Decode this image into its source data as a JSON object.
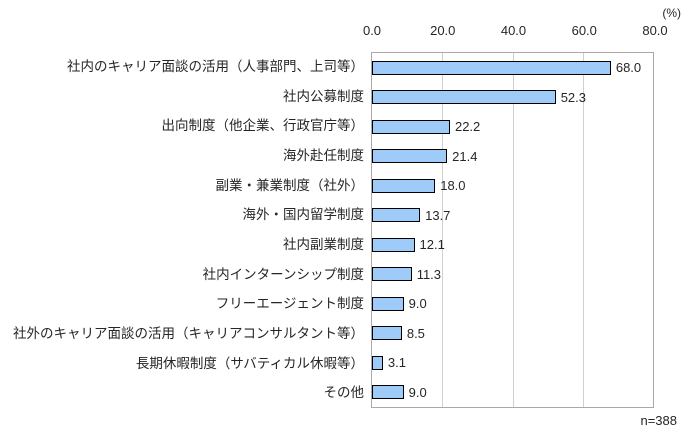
{
  "chart_data": {
    "type": "bar",
    "orientation": "horizontal",
    "title": "",
    "xlabel": "",
    "ylabel": "",
    "unit_label": "(%)",
    "sample_label": "n=388",
    "xlim": [
      0,
      80
    ],
    "x_ticks": [
      "0.0",
      "20.0",
      "40.0",
      "60.0",
      "80.0"
    ],
    "grid": true,
    "legend": false,
    "bar_color": "#9ecbf8",
    "bar_border_color": "#000000",
    "gridline_color": "#d0d0d0",
    "plot_border_color": "#a9a9a9",
    "categories": [
      "社内のキャリア面談の活用（人事部門、上司等）",
      "社内公募制度",
      "出向制度（他企業、行政官庁等）",
      "海外赴任制度",
      "副業・兼業制度（社外）",
      "海外・国内留学制度",
      "社内副業制度",
      "社内インターンシップ制度",
      "フリーエージェント制度",
      "社外のキャリア面談の活用（キャリアコンサルタント等）",
      "長期休暇制度（サバティカル休暇等）",
      "その他"
    ],
    "values": [
      68.0,
      52.3,
      22.2,
      21.4,
      18.0,
      13.7,
      12.1,
      11.3,
      9.0,
      8.5,
      3.1,
      9.0
    ],
    "value_labels": [
      "68.0",
      "52.3",
      "22.2",
      "21.4",
      "18.0",
      "13.7",
      "12.1",
      "11.3",
      "9.0",
      "8.5",
      "3.1",
      "9.0"
    ]
  }
}
